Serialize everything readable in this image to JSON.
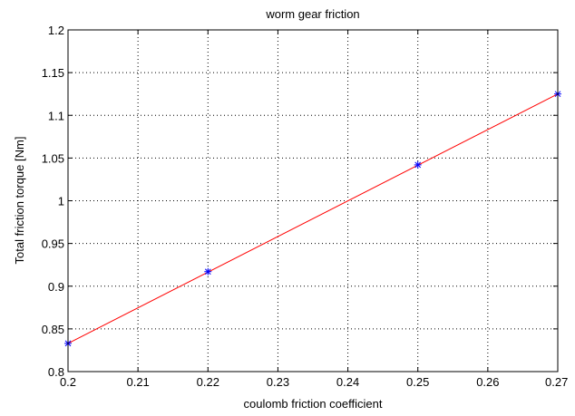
{
  "chart_data": {
    "type": "line",
    "title": "worm gear friction",
    "xlabel": "coulomb friction coefficient",
    "ylabel": "Total friction torque [Nm]",
    "xlim": [
      0.2,
      0.27
    ],
    "ylim": [
      0.8,
      1.2
    ],
    "xticks": [
      "0.2",
      "0.21",
      "0.22",
      "0.23",
      "0.24",
      "0.25",
      "0.26",
      "0.27"
    ],
    "yticks": [
      "0.8",
      "0.85",
      "0.9",
      "0.95",
      "1",
      "1.05",
      "1.1",
      "1.15",
      "1.2"
    ],
    "grid": true,
    "series": [
      {
        "marker": "asterisk",
        "line": "none",
        "color": "#0000ff",
        "x": [
          0.2,
          0.22,
          0.25,
          0.27
        ],
        "y": [
          0.833,
          0.917,
          1.042,
          1.125
        ]
      },
      {
        "marker": "none",
        "line": "solid",
        "color": "#ff0000",
        "x": [
          0.2,
          0.27
        ],
        "y": [
          0.833,
          1.125
        ]
      }
    ]
  }
}
